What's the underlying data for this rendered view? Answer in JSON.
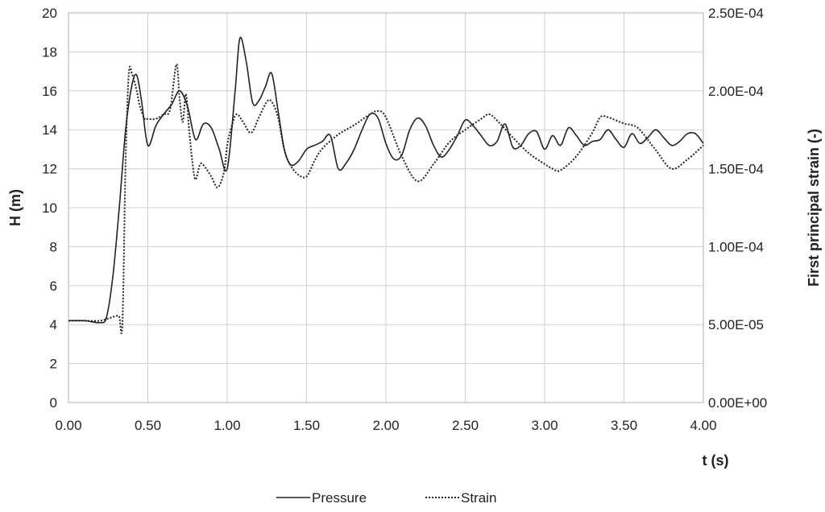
{
  "chart_data": {
    "type": "line",
    "title": "",
    "xlabel": "t (s)",
    "ylabel_left": "H (m)",
    "ylabel_right": "First principal strain (-)",
    "xlim": [
      0,
      4
    ],
    "ylim_left": [
      0,
      20
    ],
    "ylim_right": [
      0,
      0.00025
    ],
    "x_ticks": [
      0,
      0.5,
      1,
      1.5,
      2,
      2.5,
      3,
      3.5,
      4
    ],
    "x_tick_labels": [
      "0.00",
      "0.50",
      "1.00",
      "1.50",
      "2.00",
      "2.50",
      "3.00",
      "3.50",
      "4.00"
    ],
    "y_left_ticks": [
      0,
      2,
      4,
      6,
      8,
      10,
      12,
      14,
      16,
      18,
      20
    ],
    "y_left_tick_labels": [
      "0",
      "2",
      "4",
      "6",
      "8",
      "10",
      "12",
      "14",
      "16",
      "18",
      "20"
    ],
    "y_right_ticks": [
      0,
      5e-05,
      0.0001,
      0.00015,
      0.0002,
      0.00025
    ],
    "y_right_tick_labels": [
      "0.00E+00",
      "5.00E-05",
      "1.00E-04",
      "1.50E-04",
      "2.00E-04",
      "2.50E-04"
    ],
    "grid": true,
    "legend_position": "bottom",
    "series": [
      {
        "name": "Pressure",
        "axis": "left",
        "style": "solid",
        "color": "#222222",
        "x": [
          0,
          0.1,
          0.2,
          0.24,
          0.28,
          0.32,
          0.36,
          0.4,
          0.43,
          0.46,
          0.5,
          0.55,
          0.6,
          0.65,
          0.7,
          0.75,
          0.8,
          0.85,
          0.9,
          0.95,
          1.0,
          1.05,
          1.08,
          1.12,
          1.16,
          1.2,
          1.24,
          1.28,
          1.32,
          1.36,
          1.4,
          1.45,
          1.5,
          1.55,
          1.6,
          1.65,
          1.7,
          1.75,
          1.8,
          1.85,
          1.9,
          1.95,
          2.0,
          2.05,
          2.1,
          2.15,
          2.2,
          2.25,
          2.3,
          2.35,
          2.4,
          2.45,
          2.5,
          2.55,
          2.6,
          2.65,
          2.7,
          2.75,
          2.8,
          2.85,
          2.9,
          2.95,
          3.0,
          3.05,
          3.1,
          3.15,
          3.2,
          3.25,
          3.3,
          3.35,
          3.4,
          3.45,
          3.5,
          3.55,
          3.6,
          3.65,
          3.7,
          3.75,
          3.8,
          3.85,
          3.9,
          3.95,
          4.0
        ],
        "values": [
          4.2,
          4.2,
          4.1,
          4.4,
          6.5,
          10.0,
          14.0,
          16.3,
          16.8,
          15.5,
          13.2,
          14.2,
          14.8,
          15.3,
          16.0,
          15.2,
          13.5,
          14.3,
          14.1,
          13.0,
          12.0,
          16.0,
          18.7,
          17.5,
          15.4,
          15.5,
          16.2,
          16.9,
          15.0,
          13.0,
          12.2,
          12.4,
          13.0,
          13.2,
          13.4,
          13.7,
          12.0,
          12.3,
          13.0,
          14.0,
          14.8,
          14.6,
          13.3,
          12.5,
          12.7,
          14.0,
          14.6,
          14.2,
          13.2,
          12.6,
          13.0,
          13.7,
          14.5,
          14.2,
          13.7,
          13.2,
          13.4,
          14.3,
          13.1,
          13.2,
          13.8,
          13.9,
          13.0,
          13.7,
          13.2,
          14.1,
          13.7,
          13.2,
          13.4,
          13.5,
          14.0,
          13.5,
          13.1,
          13.8,
          13.3,
          13.6,
          14.0,
          13.6,
          13.2,
          13.4,
          13.8,
          13.8,
          13.3
        ]
      },
      {
        "name": "Strain",
        "axis": "right",
        "style": "dotted",
        "color": "#222222",
        "x": [
          0,
          0.1,
          0.2,
          0.3,
          0.32,
          0.34,
          0.36,
          0.38,
          0.4,
          0.43,
          0.45,
          0.48,
          0.5,
          0.55,
          0.6,
          0.64,
          0.68,
          0.7,
          0.72,
          0.74,
          0.76,
          0.78,
          0.8,
          0.83,
          0.86,
          0.9,
          0.94,
          0.98,
          1.0,
          1.03,
          1.06,
          1.1,
          1.15,
          1.2,
          1.25,
          1.28,
          1.32,
          1.36,
          1.4,
          1.45,
          1.5,
          1.55,
          1.6,
          1.7,
          1.8,
          1.9,
          1.95,
          2.0,
          2.1,
          2.2,
          2.3,
          2.4,
          2.5,
          2.6,
          2.65,
          2.7,
          2.8,
          2.9,
          3.0,
          3.05,
          3.1,
          3.2,
          3.3,
          3.35,
          3.4,
          3.5,
          3.55,
          3.6,
          3.7,
          3.8,
          3.9,
          4.0
        ],
        "values": [
          5.25e-05,
          5.25e-05,
          5.25e-05,
          5.55e-05,
          5.5e-05,
          5.1e-05,
          0.000155,
          0.000211,
          0.000211,
          0.0002,
          0.00019,
          0.000182,
          0.000182,
          0.000182,
          0.000185,
          0.000188,
          0.000217,
          0.000195,
          0.00018,
          0.000198,
          0.000175,
          0.000155,
          0.000143,
          0.000153,
          0.000151,
          0.000145,
          0.000138,
          0.000148,
          0.000165,
          0.000178,
          0.000185,
          0.00018,
          0.000173,
          0.000183,
          0.000193,
          0.000193,
          0.000183,
          0.000162,
          0.000152,
          0.000146,
          0.000145,
          0.000155,
          0.000163,
          0.000172,
          0.000178,
          0.000185,
          0.000187,
          0.000183,
          0.000158,
          0.000142,
          0.000153,
          0.000167,
          0.000175,
          0.000182,
          0.000185,
          0.000181,
          0.00017,
          0.00016,
          0.000153,
          0.00015,
          0.000149,
          0.000158,
          0.000173,
          0.000183,
          0.000183,
          0.000179,
          0.000178,
          0.000175,
          0.000162,
          0.00015,
          0.000156,
          0.000165
        ]
      }
    ]
  }
}
